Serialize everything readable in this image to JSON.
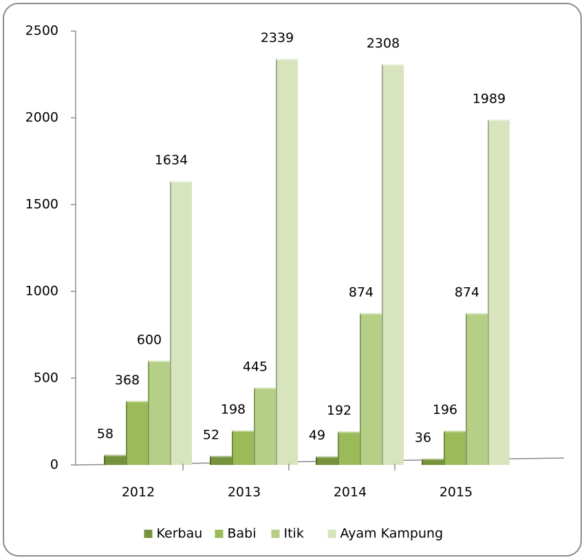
{
  "chart_data": {
    "type": "bar",
    "categories": [
      "2012",
      "2013",
      "2014",
      "2015"
    ],
    "series": [
      {
        "name": "Kerbau",
        "color": "#76923c",
        "values": [
          58,
          52,
          49,
          36
        ]
      },
      {
        "name": "Babi",
        "color": "#9bbb59",
        "values": [
          368,
          198,
          192,
          196
        ]
      },
      {
        "name": "Itik",
        "color": "#b5cf86",
        "values": [
          600,
          445,
          874,
          874
        ]
      },
      {
        "name": "Ayam Kampung",
        "color": "#d7e4bd",
        "values": [
          1634,
          2339,
          2308,
          1989
        ]
      }
    ],
    "ylim": [
      0,
      2500
    ],
    "yticks": [
      0,
      500,
      1000,
      1500,
      2000,
      2500
    ],
    "grid": false,
    "legend": "bottom"
  }
}
